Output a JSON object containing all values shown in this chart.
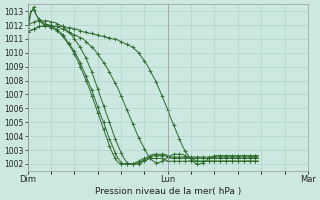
{
  "title": "Pression niveau de la mer( hPa )",
  "xlabels": [
    "Dim",
    "Lun",
    "Mar"
  ],
  "xtick_positions": [
    0,
    48,
    96
  ],
  "ylim": [
    1001.5,
    1013.5
  ],
  "yticks": [
    1002,
    1003,
    1004,
    1005,
    1006,
    1007,
    1008,
    1009,
    1010,
    1011,
    1012,
    1013
  ],
  "bg_color": "#cce8e0",
  "grid_color": "#aacfc8",
  "line_color": "#2d6a2d",
  "marker": "+",
  "xlim": [
    0,
    96
  ],
  "series": [
    [
      1011.5,
      1011.6,
      1011.7,
      1011.8,
      1011.9,
      1011.9,
      1012.0,
      1012.0,
      1012.0,
      1011.9,
      1011.9,
      1011.8,
      1011.7,
      1011.6,
      1011.5,
      1011.4,
      1011.3,
      1011.2,
      1011.1,
      1011.0,
      1010.8,
      1010.6,
      1010.4,
      1010.2,
      1009.9,
      1009.6,
      1009.3,
      1009.0,
      1008.6,
      1008.2,
      1007.8,
      1007.4,
      1006.9,
      1006.4,
      1005.9,
      1005.4,
      1004.9,
      1004.4,
      1003.9,
      1003.5,
      1003.1,
      1002.7,
      1002.4,
      1002.2,
      1002.1,
      1002.1,
      1002.2,
      1002.3,
      1002.5,
      1002.6,
      1002.7,
      1002.7,
      1002.7,
      1002.7,
      1002.6,
      1002.5,
      1002.4,
      1002.3,
      1002.2,
      1002.2,
      1002.2,
      1002.2,
      1002.2,
      1002.2,
      1002.2,
      1002.2,
      1002.2,
      1002.2,
      1002.2,
      1002.2,
      1002.2,
      1002.2,
      1002.2,
      1002.2,
      1002.2,
      1002.2,
      1002.2,
      1002.2,
      1002.2,
      1002.2
    ],
    [
      1011.8,
      1013.0,
      1013.1,
      1012.7,
      1012.4,
      1012.2,
      1012.1,
      1012.0,
      1011.9,
      1011.8,
      1011.7,
      1011.5,
      1011.3,
      1011.0,
      1010.7,
      1010.4,
      1010.1,
      1009.7,
      1009.3,
      1008.8,
      1008.3,
      1007.8,
      1007.3,
      1006.7,
      1006.1,
      1005.5,
      1005.0,
      1004.4,
      1003.8,
      1003.3,
      1002.8,
      1002.4,
      1002.1,
      1002.0,
      1002.0,
      1002.0,
      1002.0,
      1002.0,
      1002.1,
      1002.2,
      1002.3,
      1002.4,
      1002.5,
      1002.6,
      1002.6,
      1002.6,
      1002.6,
      1002.6,
      1002.5,
      1002.4,
      1002.4,
      1002.4,
      1002.4,
      1002.4,
      1002.4,
      1002.4,
      1002.4,
      1002.4,
      1002.4,
      1002.4,
      1002.4,
      1002.4,
      1002.4,
      1002.4,
      1002.4,
      1002.4,
      1002.4,
      1002.4,
      1002.4,
      1002.4,
      1002.4,
      1002.4,
      1002.4,
      1002.4,
      1002.4,
      1002.4,
      1002.4,
      1002.4,
      1002.4,
      1002.4
    ],
    [
      1011.5,
      1012.8,
      1013.3,
      1012.7,
      1012.3,
      1012.1,
      1012.0,
      1011.9,
      1011.8,
      1011.7,
      1011.6,
      1011.4,
      1011.2,
      1010.9,
      1010.6,
      1010.3,
      1009.9,
      1009.5,
      1009.0,
      1008.5,
      1008.0,
      1007.5,
      1006.9,
      1006.3,
      1005.7,
      1005.1,
      1004.5,
      1003.9,
      1003.3,
      1002.8,
      1002.4,
      1002.1,
      1002.0,
      1002.0,
      1002.0,
      1002.0,
      1002.0,
      1002.1,
      1002.2,
      1002.3,
      1002.4,
      1002.5,
      1002.6,
      1002.7,
      1002.7,
      1002.7,
      1002.7,
      1002.7,
      1002.6,
      1002.5,
      1002.5,
      1002.5,
      1002.5,
      1002.5,
      1002.5,
      1002.5,
      1002.5,
      1002.5,
      1002.5,
      1002.5,
      1002.5,
      1002.5,
      1002.5,
      1002.5,
      1002.5,
      1002.5,
      1002.5,
      1002.5,
      1002.5,
      1002.5,
      1002.5,
      1002.5,
      1002.5,
      1002.5,
      1002.5,
      1002.5,
      1002.5,
      1002.5,
      1002.5,
      1002.5
    ],
    [
      1012.0,
      1012.1,
      1012.2,
      1012.3,
      1012.3,
      1012.3,
      1012.3,
      1012.3,
      1012.2,
      1012.2,
      1012.1,
      1012.0,
      1011.9,
      1011.7,
      1011.5,
      1011.3,
      1011.0,
      1010.7,
      1010.4,
      1010.0,
      1009.6,
      1009.1,
      1008.6,
      1008.0,
      1007.4,
      1006.8,
      1006.2,
      1005.6,
      1005.0,
      1004.4,
      1003.8,
      1003.3,
      1002.8,
      1002.4,
      1002.1,
      1002.0,
      1002.0,
      1002.0,
      1002.0,
      1002.1,
      1002.2,
      1002.3,
      1002.4,
      1002.4,
      1002.4,
      1002.4,
      1002.4,
      1002.3,
      1002.2,
      1002.2,
      1002.2,
      1002.2,
      1002.2,
      1002.2,
      1002.2,
      1002.2,
      1002.2,
      1002.2,
      1002.2,
      1002.2,
      1002.2,
      1002.2,
      1002.2,
      1002.2,
      1002.2,
      1002.2,
      1002.2,
      1002.2,
      1002.2,
      1002.2,
      1002.2,
      1002.2,
      1002.2,
      1002.2,
      1002.2,
      1002.2,
      1002.2,
      1002.2,
      1002.2,
      1002.2
    ],
    [
      1011.5,
      1011.6,
      1011.7,
      1011.8,
      1011.9,
      1011.9,
      1011.9,
      1011.9,
      1011.9,
      1011.9,
      1011.9,
      1011.9,
      1011.9,
      1011.8,
      1011.8,
      1011.8,
      1011.7,
      1011.7,
      1011.6,
      1011.5,
      1011.5,
      1011.4,
      1011.4,
      1011.3,
      1011.3,
      1011.2,
      1011.2,
      1011.1,
      1011.1,
      1011.0,
      1011.0,
      1010.9,
      1010.8,
      1010.7,
      1010.6,
      1010.5,
      1010.4,
      1010.2,
      1010.0,
      1009.7,
      1009.4,
      1009.1,
      1008.7,
      1008.3,
      1007.9,
      1007.4,
      1006.9,
      1006.4,
      1005.9,
      1005.3,
      1004.8,
      1004.3,
      1003.8,
      1003.3,
      1002.9,
      1002.6,
      1002.3,
      1002.1,
      1002.0,
      1002.0,
      1002.1,
      1002.2,
      1002.4,
      1002.5,
      1002.6,
      1002.6,
      1002.6,
      1002.6,
      1002.6,
      1002.6,
      1002.6,
      1002.6,
      1002.6,
      1002.6,
      1002.6,
      1002.6,
      1002.6,
      1002.6,
      1002.6,
      1002.6
    ]
  ]
}
